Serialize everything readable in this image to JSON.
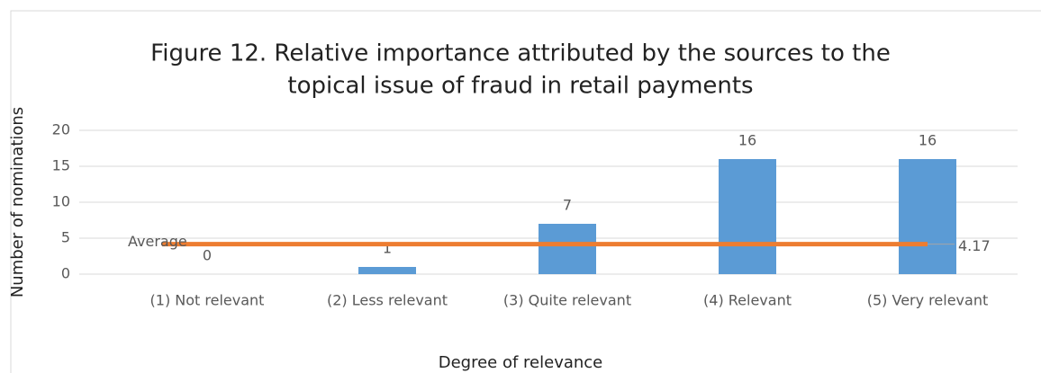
{
  "chart_data": {
    "type": "bar",
    "title": [
      "Figure 12. Relative importance attributed by the sources to the",
      "topical issue of fraud in retail payments"
    ],
    "xlabel": "Degree of relevance",
    "ylabel": "Number of nominations",
    "categories": [
      "(1) Not relevant",
      "(2) Less relevant",
      "(3) Quite relevant",
      "(4) Relevant",
      "(5) Very relevant"
    ],
    "series": [
      {
        "color": "#5b9bd5",
        "values": [
          0,
          1,
          7,
          16,
          16
        ]
      },
      {
        "name": "Average",
        "type": "line",
        "color": "#ed7d31",
        "values": [
          4.17,
          4.17,
          4.17,
          4.17,
          4.17
        ]
      }
    ],
    "ylim": [
      0,
      20
    ],
    "yticks": [
      0,
      5,
      10,
      15,
      20
    ],
    "grid": true
  }
}
